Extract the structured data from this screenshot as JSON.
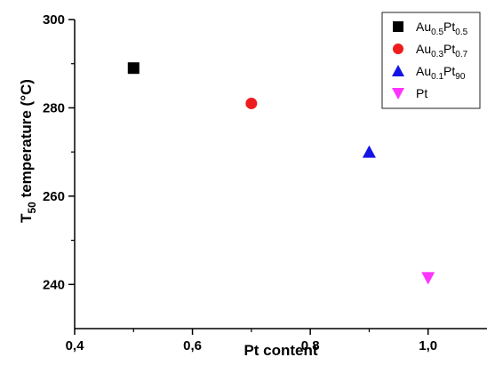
{
  "chart_data": {
    "type": "scatter",
    "xlabel": "Pt content",
    "ylabel": {
      "prefix": "T",
      "sub": "50",
      "suffix": " temperature (°C)"
    },
    "xlim": [
      0.4,
      1.1
    ],
    "ylim": [
      230,
      300
    ],
    "xticks": [
      0.4,
      0.6,
      0.8,
      1.0
    ],
    "xtick_labels": [
      "0,4",
      "0,6",
      "0,8",
      "1,0"
    ],
    "yticks": [
      240,
      260,
      280,
      300
    ],
    "ytick_labels": [
      "240",
      "260",
      "280",
      "300"
    ],
    "grid": false,
    "legend_position": "top-right",
    "series": [
      {
        "label": {
          "base": "Au",
          "s1": "0.5",
          "mid": "Pt",
          "s2": "0.5"
        },
        "marker": "square",
        "color": "#000000",
        "x": 0.5,
        "y": 289
      },
      {
        "label": {
          "base": "Au",
          "s1": "0.3",
          "mid": "Pt",
          "s2": "0.7"
        },
        "marker": "circle",
        "color": "#ee1c1c",
        "x": 0.7,
        "y": 281
      },
      {
        "label": {
          "base": "Au",
          "s1": "0.1",
          "mid": "Pt",
          "s2": "90"
        },
        "marker": "triangle-up",
        "color": "#1414e6",
        "x": 0.9,
        "y": 270
      },
      {
        "label": {
          "base": "Pt",
          "s1": "",
          "mid": "",
          "s2": ""
        },
        "marker": "triangle-down",
        "color": "#ff33ff",
        "x": 1.0,
        "y": 241.5
      }
    ]
  }
}
